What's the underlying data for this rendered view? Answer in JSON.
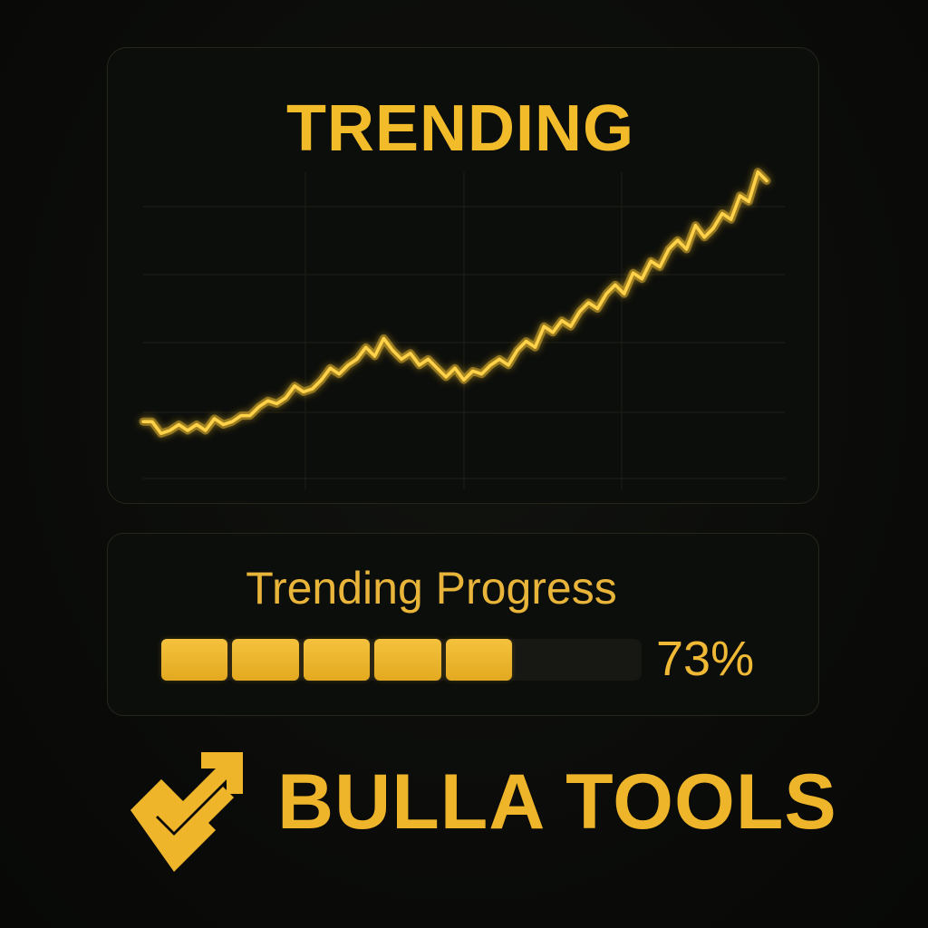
{
  "chart_card": {
    "title": "TRENDING"
  },
  "chart_data": {
    "type": "line",
    "title": "TRENDING",
    "xlabel": "",
    "ylabel": "",
    "grid": true,
    "series": [
      {
        "values": [
          10,
          10,
          6,
          7,
          9,
          7,
          9,
          7,
          11,
          9,
          10,
          12,
          12,
          15,
          17,
          16,
          18,
          22,
          20,
          21,
          24,
          28,
          26,
          29,
          31,
          35,
          32,
          38,
          34,
          31,
          33,
          29,
          31,
          28,
          25,
          28,
          24,
          27,
          26,
          29,
          31,
          29,
          34,
          37,
          35,
          42,
          40,
          44,
          42,
          47,
          50,
          48,
          53,
          56,
          53,
          60,
          58,
          64,
          62,
          68,
          71,
          68,
          76,
          72,
          75,
          80,
          78,
          86,
          84,
          94,
          91
        ]
      }
    ],
    "line_color": "#f5c02e"
  },
  "progress_card": {
    "label": "Trending Progress",
    "percent": 73,
    "percent_text": "73%",
    "filled_segments": 5,
    "bar_color": "#efb52a"
  },
  "brand": {
    "name": "BULLA TOOLS",
    "logo_icon": "check-arrow-icon",
    "color": "#efb52a"
  }
}
